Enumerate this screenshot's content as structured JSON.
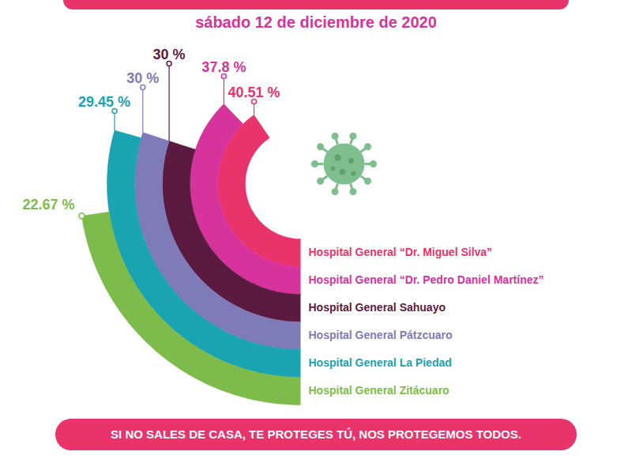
{
  "chart_data": {
    "type": "radial_bar",
    "subtitle": "sábado 12 de diciembre de 2020",
    "categories": [
      "Hospital General “Dr. Miguel Silva”",
      "Hospital General “Dr. Pedro Daniel Martínez”",
      "Hospital General Sahuayo",
      "Hospital General Pátzcuaro",
      "Hospital General La Piedad",
      "Hospital General Zitácuaro"
    ],
    "values": [
      40.51,
      37.8,
      30,
      30,
      29.45,
      22.67
    ],
    "value_labels": [
      "40.51 %",
      "37.8 %",
      "30 %",
      "30 %",
      "29.45 %",
      "22.67 %"
    ],
    "colors": [
      "#e8336b",
      "#d6339c",
      "#5b1a3f",
      "#7f7bb8",
      "#1aa3b0",
      "#7dbb4a"
    ],
    "data_labels": true,
    "tick_labels": false,
    "caption": "SI NO SALES DE CASA, TE PROTEGES TÚ, NOS PROTEGEMOS TODOS."
  }
}
